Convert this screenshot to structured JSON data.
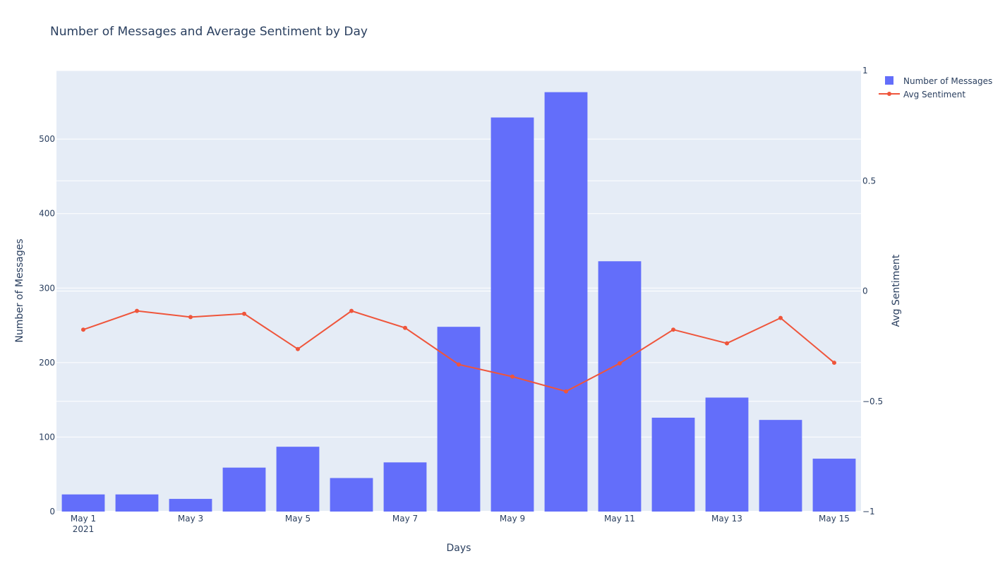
{
  "chart_data": {
    "type": "bar",
    "title": "Number of Messages and Average Sentiment by Day",
    "xlabel": "Days",
    "ylabel": "Number of Messages",
    "y2label": "Avg Sentiment",
    "x": [
      "2021-05-01",
      "2021-05-02",
      "2021-05-03",
      "2021-05-04",
      "2021-05-05",
      "2021-05-06",
      "2021-05-07",
      "2021-05-08",
      "2021-05-09",
      "2021-05-10",
      "2021-05-11",
      "2021-05-12",
      "2021-05-13",
      "2021-05-14",
      "2021-05-15"
    ],
    "x_tick_labels": [
      {
        "date": "2021-05-01",
        "label": "May 1",
        "sublabel": "2021"
      },
      {
        "date": "2021-05-03",
        "label": "May 3",
        "sublabel": ""
      },
      {
        "date": "2021-05-05",
        "label": "May 5",
        "sublabel": ""
      },
      {
        "date": "2021-05-07",
        "label": "May 7",
        "sublabel": ""
      },
      {
        "date": "2021-05-09",
        "label": "May 9",
        "sublabel": ""
      },
      {
        "date": "2021-05-11",
        "label": "May 11",
        "sublabel": ""
      },
      {
        "date": "2021-05-13",
        "label": "May 13",
        "sublabel": ""
      },
      {
        "date": "2021-05-15",
        "label": "May 15",
        "sublabel": ""
      }
    ],
    "series": [
      {
        "name": "Number of Messages",
        "type": "bar",
        "axis": "y",
        "color": "#636efa",
        "values": [
          23,
          23,
          17,
          59,
          87,
          45,
          66,
          248,
          529,
          563,
          336,
          126,
          153,
          123,
          71
        ]
      },
      {
        "name": "Avg Sentiment",
        "type": "line+markers",
        "axis": "y2",
        "color": "#ef553b",
        "values": [
          -0.175,
          -0.09,
          -0.118,
          -0.103,
          -0.263,
          -0.09,
          -0.167,
          -0.333,
          -0.388,
          -0.455,
          -0.328,
          -0.175,
          -0.237,
          -0.122,
          -0.325
        ]
      }
    ],
    "ylim": [
      0,
      592
    ],
    "yticks": [
      0,
      100,
      200,
      300,
      400,
      500
    ],
    "y2lim": [
      -1,
      1
    ],
    "y2ticks": [
      -1,
      -0.5,
      0,
      0.5,
      1
    ],
    "y2tick_labels": [
      "−1",
      "−0.5",
      "0",
      "0.5",
      "1"
    ],
    "grid": true,
    "legend_position": "top-right",
    "colors": {
      "plot_bg": "#e5ecf6",
      "grid": "#ffffff",
      "text": "#2a3f5f"
    }
  }
}
